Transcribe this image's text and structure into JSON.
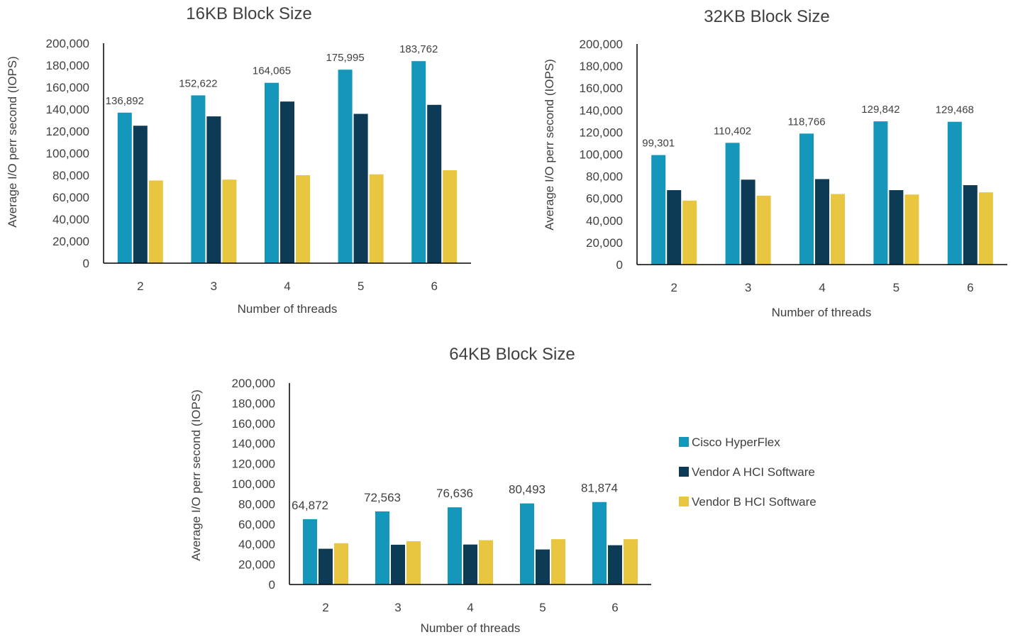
{
  "colors": {
    "series": [
      "#1596bb",
      "#0d3b55",
      "#e8c640"
    ],
    "axis": "#000000",
    "text": "#404040"
  },
  "legend": {
    "items": [
      "Cisco HyperFlex",
      "Vendor A HCI Software",
      "Vendor B HCI Software"
    ]
  },
  "chart_data": [
    {
      "type": "bar",
      "title": "16KB Block Size",
      "xlabel": "Number of threads",
      "ylabel": "Average I/O perr second (IOPS)",
      "ylim": [
        0,
        200000
      ],
      "yticks": [
        "0",
        "20,000",
        "40,000",
        "60,000",
        "80,000",
        "100,000",
        "120,000",
        "140,000",
        "160,000",
        "180,000",
        "200,000"
      ],
      "categories": [
        "2",
        "3",
        "4",
        "5",
        "6"
      ],
      "series": [
        {
          "name": "Cisco HyperFlex",
          "values": [
            136892,
            152622,
            164065,
            175995,
            183762
          ]
        },
        {
          "name": "Vendor A HCI Software",
          "values": [
            125000,
            133500,
            147000,
            135800,
            144000
          ]
        },
        {
          "name": "Vendor B HCI Software",
          "values": [
            75200,
            76000,
            80000,
            80800,
            84500
          ]
        }
      ],
      "data_labels": [
        "136,892",
        "152,622",
        "164,065",
        "175,995",
        "183,762"
      ]
    },
    {
      "type": "bar",
      "title": "32KB Block Size",
      "xlabel": "Number of threads",
      "ylabel": "Average I/O perr second (IOPS)",
      "ylim": [
        0,
        200000
      ],
      "yticks": [
        "0",
        "20,000",
        "40,000",
        "60,000",
        "80,000",
        "100,000",
        "120,000",
        "140,000",
        "160,000",
        "180,000",
        "200,000"
      ],
      "categories": [
        "2",
        "3",
        "4",
        "5",
        "6"
      ],
      "series": [
        {
          "name": "Cisco HyperFlex",
          "values": [
            99301,
            110402,
            118766,
            129842,
            129468
          ]
        },
        {
          "name": "Vendor A HCI Software",
          "values": [
            67500,
            77000,
            77500,
            67500,
            72000
          ]
        },
        {
          "name": "Vendor B HCI Software",
          "values": [
            58000,
            62500,
            64000,
            63500,
            65500
          ]
        }
      ],
      "data_labels": [
        "99,301",
        "110,402",
        "118,766",
        "129,842",
        "129,468"
      ]
    },
    {
      "type": "bar",
      "title": "64KB Block Size",
      "xlabel": "Number of threads",
      "ylabel": "Average I/O perr second (IOPS)",
      "ylim": [
        0,
        200000
      ],
      "yticks": [
        "0",
        "20,000",
        "40,000",
        "60,000",
        "80,000",
        "100,000",
        "120,000",
        "140,000",
        "160,000",
        "180,000",
        "200,000"
      ],
      "categories": [
        "2",
        "3",
        "4",
        "5",
        "6"
      ],
      "series": [
        {
          "name": "Cisco HyperFlex",
          "values": [
            64872,
            72563,
            76636,
            80493,
            81874
          ]
        },
        {
          "name": "Vendor A HCI Software",
          "values": [
            35500,
            39500,
            39700,
            34800,
            39000
          ]
        },
        {
          "name": "Vendor B HCI Software",
          "values": [
            41000,
            43000,
            44000,
            45000,
            45000
          ]
        }
      ],
      "data_labels": [
        "64,872",
        "72,563",
        "76,636",
        "80,493",
        "81,874"
      ]
    }
  ]
}
